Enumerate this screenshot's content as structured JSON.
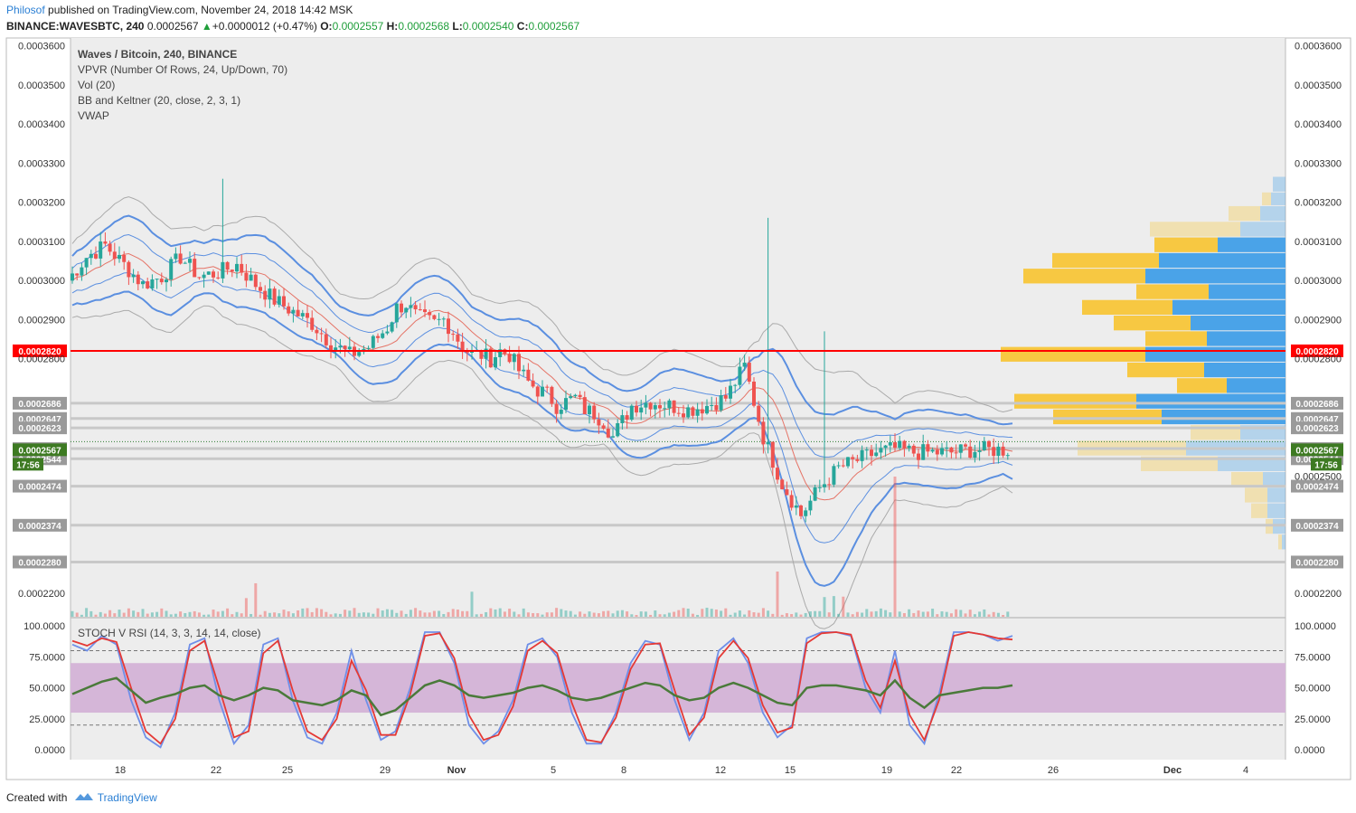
{
  "header": {
    "author": "Philosof",
    "published": "published on TradingView.com, November 24, 2018 14:42 MSK",
    "symbol": "BINANCE:WAVESBTC, 240",
    "last": "0.0002567",
    "arrow": "▲",
    "change": "+0.0000012 (+0.47%)",
    "o_label": "O:",
    "o": "0.0002557",
    "h_label": "H:",
    "h": "0.0002568",
    "l_label": "L:",
    "l": "0.0002540",
    "c_label": "C:",
    "c": "0.0002567"
  },
  "legend": [
    "Waves / Bitcoin, 240, BINANCE",
    "VPVR (Number Of Rows, 24, Up/Down, 70)",
    "Vol (20)",
    "BB and Keltner (20, close, 2, 3, 1)",
    "VWAP"
  ],
  "stoch_legend": "STOCH V RSI (14, 3, 3, 14, 14, close)",
  "footer": {
    "created": "Created with",
    "brand": "TradingView"
  },
  "colors": {
    "up": "#26a69a",
    "down": "#ef5350",
    "bb": "#5b8fe0",
    "keltner_mid": "#e57366",
    "resistance": "#ff0000",
    "support_lines": "#c8c8c8",
    "vp_up": "#f7c842",
    "vp_down": "#4aa3e8",
    "rsi_band": "#d5b6d8"
  },
  "chart_data": [
    {
      "type": "candlestick",
      "title": "Waves / Bitcoin, 240, BINANCE",
      "x_tick_labels": [
        "18",
        "22",
        "25",
        "29",
        "Nov",
        "5",
        "8",
        "12",
        "15",
        "19",
        "22",
        "26",
        "Dec",
        "4"
      ],
      "y_tick_labels": [
        "0.0003600",
        "0.0003500",
        "0.0003400",
        "0.0003300",
        "0.0003200",
        "0.0003100",
        "0.0003000",
        "0.0002900",
        "0.0002800",
        "0.0002200"
      ],
      "ylim": [
        0.000214,
        0.000362
      ],
      "resistance_level": {
        "label": "0.0002820",
        "value": 0.000282
      },
      "support_levels": [
        "0.0002686",
        "0.0002647",
        "0.0002623",
        "0.0002570",
        "0.0002544",
        "0.0002474",
        "0.0002374",
        "0.0002280"
      ],
      "support_values": [
        0.0002686,
        0.0002647,
        0.0002623,
        0.000257,
        0.0002544,
        0.0002474,
        0.0002374,
        0.000228
      ],
      "last_price_label": "0.0002567",
      "last_price": 0.0002567,
      "countdown": "17:56",
      "partial_tick": "0.0002500",
      "series": [
        {
          "name": "price_path",
          "x": [
            0,
            4,
            8,
            12,
            16,
            20,
            24,
            28,
            32,
            36,
            40,
            44,
            48,
            52,
            56,
            60,
            64,
            68,
            70,
            72,
            74,
            76,
            78,
            80,
            82,
            84,
            86,
            88,
            90,
            92,
            94,
            96,
            98,
            100,
            102,
            104,
            106,
            108,
            110,
            112,
            114,
            116,
            118,
            120,
            124,
            128,
            132,
            136,
            140,
            144,
            148,
            152,
            156,
            160,
            164,
            168,
            172,
            176,
            180,
            184,
            188,
            192,
            196
          ],
          "y": [
            0.0003,
            0.000306,
            0.000309,
            0.000304,
            0.000299,
            0.000301,
            0.000306,
            0.000301,
            0.000302,
            0.000304,
            0.000299,
            0.000295,
            0.000292,
            0.000289,
            0.000284,
            0.000281,
            0.000283,
            0.000288,
            0.000293,
            0.000294,
            0.000291,
            0.00029,
            0.000289,
            0.00029,
            0.000287,
            0.000283,
            0.000281,
            0.000281,
            0.00028,
            0.000282,
            0.000281,
            0.000277,
            0.000274,
            0.000272,
            0.000271,
            0.000268,
            0.000269,
            0.00027,
            0.000267,
            0.000266,
            0.000264,
            0.00026,
            0.000264,
            0.000268,
            0.000269,
            0.000268,
            0.000267,
            0.000268,
            0.00027,
            0.000278,
            0.00026,
            0.000248,
            0.00024,
            0.000247,
            0.000252,
            0.000254,
            0.000256,
            0.000257,
            0.000256,
            0.000256,
            0.000256,
            0.0002567,
            0.0002567
          ]
        },
        {
          "name": "wick_spikes",
          "x": [
            32,
            148,
            160
          ],
          "y": [
            0.000326,
            0.000316,
            0.000287
          ]
        }
      ]
    },
    {
      "type": "line",
      "title": "STOCH V RSI (14, 3, 3, 14, 14, close)",
      "y_tick_labels": [
        "100.0000",
        "75.0000",
        "50.0000",
        "25.0000",
        "0.0000"
      ],
      "ylim": [
        -5,
        103
      ],
      "band": [
        30,
        70
      ],
      "dashed_levels": [
        80,
        20
      ],
      "series": [
        {
          "name": "",
          "values": [
            85,
            80,
            92,
            85,
            40,
            10,
            2,
            30,
            85,
            90,
            40,
            5,
            20,
            85,
            90,
            40,
            10,
            5,
            30,
            80,
            40,
            8,
            15,
            50,
            95,
            95,
            70,
            20,
            5,
            15,
            40,
            85,
            90,
            75,
            30,
            5,
            5,
            30,
            70,
            88,
            85,
            40,
            8,
            30,
            80,
            90,
            70,
            30,
            10,
            20,
            90,
            95,
            95,
            92,
            50,
            30,
            80,
            20,
            5,
            45,
            95,
            95,
            93,
            88,
            92
          ]
        },
        {
          "name": "",
          "values": [
            88,
            84,
            90,
            87,
            50,
            15,
            5,
            25,
            80,
            88,
            50,
            10,
            15,
            78,
            88,
            48,
            15,
            8,
            25,
            72,
            48,
            12,
            12,
            45,
            92,
            94,
            74,
            28,
            8,
            12,
            35,
            80,
            88,
            78,
            38,
            8,
            6,
            26,
            65,
            85,
            86,
            48,
            12,
            26,
            74,
            88,
            74,
            36,
            14,
            18,
            86,
            94,
            95,
            93,
            56,
            34,
            72,
            28,
            8,
            40,
            92,
            95,
            93,
            90,
            89
          ]
        },
        {
          "name": "",
          "values": [
            45,
            50,
            55,
            58,
            48,
            38,
            42,
            45,
            50,
            52,
            44,
            40,
            44,
            50,
            48,
            40,
            38,
            36,
            40,
            48,
            44,
            28,
            32,
            42,
            52,
            56,
            52,
            44,
            42,
            44,
            46,
            50,
            52,
            48,
            42,
            40,
            42,
            46,
            50,
            54,
            52,
            44,
            40,
            42,
            50,
            54,
            50,
            44,
            38,
            36,
            50,
            52,
            52,
            50,
            48,
            44,
            56,
            42,
            34,
            44,
            46,
            48,
            50,
            50,
            52
          ]
        }
      ]
    }
  ]
}
